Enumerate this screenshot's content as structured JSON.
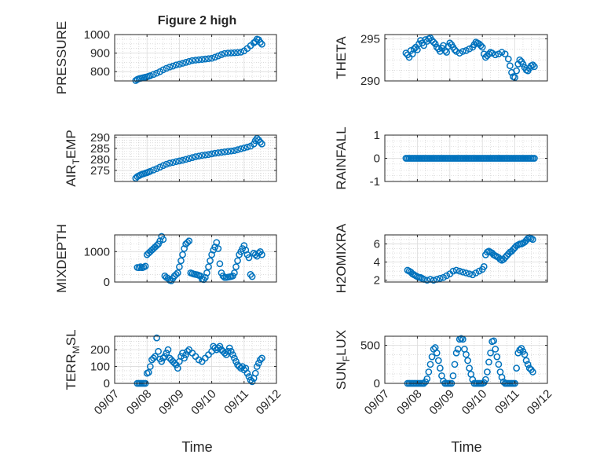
{
  "figure": {
    "title": "Figure 2 high",
    "xlabel": "Time"
  },
  "colors": {
    "marker": "#0072BD",
    "axis": "#262626",
    "grid": "#dcdcdc",
    "minor_grid": "#c8c8c8"
  },
  "chart_data": [
    {
      "type": "scatter",
      "ylabel": "PRESSURE",
      "ylim": [
        750,
        1000
      ],
      "yticks": [
        "800",
        "900",
        "1000"
      ],
      "ytick_values": [
        800,
        900,
        1000
      ],
      "xlim": [
        "09/07",
        "09/12"
      ],
      "xticklabels": [
        "09/07",
        "09/08",
        "09/09",
        "09/10",
        "09/11",
        "09/12"
      ],
      "show_xticklabels": false,
      "grid": true,
      "x": [
        7.65,
        7.7,
        7.75,
        7.8,
        7.85,
        7.9,
        7.95,
        8.0,
        8.05,
        8.1,
        8.2,
        8.3,
        8.4,
        8.5,
        8.6,
        8.7,
        8.8,
        8.9,
        9.0,
        9.1,
        9.2,
        9.3,
        9.4,
        9.5,
        9.6,
        9.7,
        9.8,
        9.9,
        10.0,
        10.1,
        10.2,
        10.3,
        10.4,
        10.5,
        10.6,
        10.7,
        10.8,
        10.9,
        11.0,
        11.1,
        11.2,
        11.3,
        11.35,
        11.4,
        11.45,
        11.5,
        11.55
      ],
      "y": [
        752,
        758,
        762,
        764,
        766,
        768,
        770,
        772,
        775,
        778,
        785,
        792,
        800,
        810,
        818,
        825,
        830,
        836,
        840,
        845,
        850,
        855,
        860,
        862,
        864,
        866,
        868,
        870,
        872,
        878,
        885,
        892,
        898,
        900,
        901,
        902,
        903,
        905,
        912,
        925,
        940,
        955,
        962,
        975,
        972,
        958,
        948
      ]
    },
    {
      "type": "scatter",
      "ylabel": "THETA",
      "ylim": [
        290,
        295.5
      ],
      "yticks": [
        "290",
        "295"
      ],
      "ytick_values": [
        290,
        295
      ],
      "xlim": [
        "09/07",
        "09/12"
      ],
      "show_xticklabels": false,
      "grid": true,
      "x": [
        7.65,
        7.7,
        7.75,
        7.8,
        7.85,
        7.9,
        7.95,
        8.0,
        8.05,
        8.1,
        8.15,
        8.2,
        8.25,
        8.3,
        8.35,
        8.4,
        8.45,
        8.5,
        8.55,
        8.6,
        8.65,
        8.7,
        8.75,
        8.8,
        8.85,
        8.9,
        8.95,
        9.0,
        9.05,
        9.1,
        9.15,
        9.2,
        9.3,
        9.4,
        9.5,
        9.6,
        9.7,
        9.75,
        9.8,
        9.85,
        9.9,
        9.95,
        10.0,
        10.05,
        10.1,
        10.15,
        10.2,
        10.25,
        10.3,
        10.4,
        10.5,
        10.6,
        10.7,
        10.8,
        10.85,
        10.9,
        10.95,
        11.0,
        11.05,
        11.1,
        11.15,
        11.2,
        11.25,
        11.3,
        11.35,
        11.4,
        11.45,
        11.5,
        11.55,
        11.6
      ],
      "y": [
        293.3,
        293.1,
        292.8,
        293.6,
        293.2,
        293.8,
        294.0,
        293.7,
        294.4,
        294.8,
        294.5,
        294.2,
        294.9,
        294.7,
        295.0,
        295.1,
        294.8,
        294.6,
        294.4,
        294.0,
        293.8,
        293.5,
        293.9,
        294.2,
        293.6,
        293.4,
        294.1,
        294.5,
        294.3,
        294.0,
        293.7,
        293.5,
        293.3,
        293.5,
        293.6,
        293.8,
        294.0,
        294.3,
        294.6,
        294.5,
        294.4,
        294.2,
        294.0,
        293.2,
        292.8,
        293.0,
        293.2,
        293.4,
        293.3,
        293.1,
        293.2,
        293.4,
        293.2,
        292.6,
        291.8,
        291.0,
        290.5,
        290.4,
        291.2,
        292.0,
        292.5,
        292.3,
        292.0,
        291.6,
        291.3,
        291.2,
        291.5,
        291.8,
        291.9,
        291.7
      ]
    },
    {
      "type": "scatter",
      "ylabel": "AIR_TEMP",
      "ylim": [
        270,
        291
      ],
      "yticks": [
        "275",
        "280",
        "285",
        "290"
      ],
      "ytick_values": [
        275,
        280,
        285,
        290
      ],
      "xlim": [
        "09/07",
        "09/12"
      ],
      "show_xticklabels": false,
      "grid": true,
      "x": [
        7.65,
        7.7,
        7.75,
        7.8,
        7.85,
        7.9,
        7.95,
        8.0,
        8.05,
        8.1,
        8.2,
        8.3,
        8.4,
        8.5,
        8.6,
        8.7,
        8.8,
        8.9,
        9.0,
        9.1,
        9.2,
        9.3,
        9.4,
        9.5,
        9.6,
        9.7,
        9.8,
        9.9,
        10.0,
        10.1,
        10.2,
        10.3,
        10.4,
        10.5,
        10.6,
        10.7,
        10.8,
        10.9,
        11.0,
        11.1,
        11.2,
        11.3,
        11.35,
        11.4,
        11.45,
        11.5,
        11.55
      ],
      "y": [
        271.5,
        272.2,
        272.6,
        273.0,
        273.3,
        273.5,
        273.8,
        274.0,
        274.3,
        274.6,
        275.2,
        275.8,
        276.5,
        277.2,
        277.8,
        278.3,
        278.6,
        279.0,
        279.3,
        279.6,
        280.0,
        280.4,
        280.8,
        281.2,
        281.5,
        281.8,
        282.0,
        282.2,
        282.5,
        282.8,
        283.0,
        283.2,
        283.4,
        283.6,
        283.8,
        284.0,
        284.4,
        284.8,
        285.2,
        285.6,
        286.0,
        287.0,
        288.5,
        289.5,
        288.8,
        287.8,
        287.0
      ]
    },
    {
      "type": "scatter",
      "ylabel": "RAINFALL",
      "ylim": [
        -1,
        1
      ],
      "yticks": [
        "-1",
        "0",
        "1"
      ],
      "ytick_values": [
        -1,
        0,
        1
      ],
      "xlim": [
        "09/07",
        "09/12"
      ],
      "show_xticklabels": false,
      "grid": true,
      "x": [
        7.65,
        7.7,
        7.75,
        7.8,
        7.85,
        7.9,
        7.95,
        8.0,
        8.05,
        8.1,
        8.15,
        8.2,
        8.25,
        8.3,
        8.35,
        8.4,
        8.45,
        8.5,
        8.55,
        8.6,
        8.65,
        8.7,
        8.75,
        8.8,
        8.85,
        8.9,
        8.95,
        9.0,
        9.05,
        9.1,
        9.15,
        9.2,
        9.25,
        9.3,
        9.35,
        9.4,
        9.45,
        9.5,
        9.55,
        9.6,
        9.65,
        9.7,
        9.75,
        9.8,
        9.85,
        9.9,
        9.95,
        10.0,
        10.05,
        10.1,
        10.15,
        10.2,
        10.25,
        10.3,
        10.35,
        10.4,
        10.45,
        10.5,
        10.55,
        10.6,
        10.65,
        10.7,
        10.75,
        10.8,
        10.85,
        10.9,
        10.95,
        11.0,
        11.05,
        11.1,
        11.15,
        11.2,
        11.25,
        11.3,
        11.35,
        11.4,
        11.45,
        11.5,
        11.55,
        11.6
      ],
      "y": [
        0,
        0,
        0,
        0,
        0,
        0,
        0,
        0,
        0,
        0,
        0,
        0,
        0,
        0,
        0,
        0,
        0,
        0,
        0,
        0,
        0,
        0,
        0,
        0,
        0,
        0,
        0,
        0,
        0,
        0,
        0,
        0,
        0,
        0,
        0,
        0,
        0,
        0,
        0,
        0,
        0,
        0,
        0,
        0,
        0,
        0,
        0,
        0,
        0,
        0,
        0,
        0,
        0,
        0,
        0,
        0,
        0,
        0,
        0,
        0,
        0,
        0,
        0,
        0,
        0,
        0,
        0,
        0,
        0,
        0,
        0,
        0,
        0,
        0,
        0,
        0,
        0,
        0,
        0,
        0
      ]
    },
    {
      "type": "scatter",
      "ylabel": "MIXDEPTH",
      "ylim": [
        0,
        1550
      ],
      "yticks": [
        "0",
        "1000"
      ],
      "ytick_values": [
        0,
        1000
      ],
      "xlim": [
        "09/07",
        "09/12"
      ],
      "show_xticklabels": false,
      "grid": true,
      "x": [
        7.7,
        7.75,
        7.8,
        7.85,
        7.9,
        7.95,
        8.0,
        8.05,
        8.1,
        8.15,
        8.2,
        8.25,
        8.3,
        8.35,
        8.4,
        8.45,
        8.5,
        8.55,
        8.6,
        8.65,
        8.7,
        8.75,
        8.8,
        8.85,
        8.9,
        8.95,
        9.0,
        9.05,
        9.1,
        9.15,
        9.2,
        9.25,
        9.3,
        9.35,
        9.4,
        9.45,
        9.5,
        9.55,
        9.6,
        9.65,
        9.7,
        9.75,
        9.8,
        9.85,
        9.9,
        9.95,
        10.0,
        10.05,
        10.1,
        10.15,
        10.2,
        10.25,
        10.3,
        10.35,
        10.4,
        10.45,
        10.5,
        10.55,
        10.6,
        10.65,
        10.7,
        10.75,
        10.8,
        10.85,
        10.9,
        10.95,
        11.0,
        11.05,
        11.1,
        11.15,
        11.2,
        11.25,
        11.3,
        11.35,
        11.4,
        11.45,
        11.5,
        11.55
      ],
      "y": [
        480,
        470,
        500,
        470,
        490,
        520,
        900,
        950,
        1000,
        1050,
        1100,
        1150,
        1200,
        1250,
        1350,
        1500,
        1400,
        200,
        150,
        120,
        60,
        40,
        120,
        200,
        250,
        300,
        500,
        700,
        900,
        1100,
        1250,
        1300,
        1350,
        300,
        280,
        260,
        250,
        240,
        220,
        200,
        100,
        80,
        150,
        300,
        500,
        700,
        900,
        1050,
        1150,
        1300,
        1100,
        600,
        300,
        200,
        150,
        150,
        160,
        170,
        180,
        200,
        300,
        500,
        700,
        900,
        1000,
        1100,
        1200,
        1050,
        900,
        800,
        250,
        180,
        950,
        900,
        850,
        950,
        1000,
        900
      ]
    },
    {
      "type": "scatter",
      "ylabel": "H2OMIXRA",
      "ylim": [
        1.8,
        7
      ],
      "yticks": [
        "2",
        "4",
        "6"
      ],
      "ytick_values": [
        2,
        4,
        6
      ],
      "xlim": [
        "09/07",
        "09/12"
      ],
      "show_xticklabels": false,
      "grid": true,
      "x": [
        7.7,
        7.75,
        7.8,
        7.85,
        7.9,
        7.95,
        8.0,
        8.05,
        8.1,
        8.15,
        8.2,
        8.3,
        8.4,
        8.5,
        8.6,
        8.7,
        8.8,
        8.9,
        9.0,
        9.1,
        9.2,
        9.3,
        9.4,
        9.5,
        9.6,
        9.7,
        9.8,
        9.9,
        10.0,
        10.05,
        10.1,
        10.15,
        10.2,
        10.25,
        10.3,
        10.35,
        10.4,
        10.45,
        10.5,
        10.55,
        10.6,
        10.65,
        10.7,
        10.75,
        10.8,
        10.85,
        10.9,
        10.95,
        11.0,
        11.05,
        11.1,
        11.15,
        11.2,
        11.25,
        11.3,
        11.35,
        11.4,
        11.45,
        11.5,
        11.55
      ],
      "y": [
        3.1,
        3.0,
        2.9,
        2.7,
        2.6,
        2.5,
        2.4,
        2.3,
        2.3,
        2.2,
        2.1,
        2.0,
        2.1,
        2.0,
        2.1,
        2.2,
        2.3,
        2.5,
        2.7,
        3.0,
        3.1,
        3.0,
        2.9,
        2.8,
        2.7,
        2.6,
        2.8,
        3.0,
        3.2,
        3.5,
        4.8,
        5.1,
        5.2,
        5.1,
        5.0,
        4.8,
        4.7,
        4.6,
        4.5,
        4.3,
        4.2,
        4.3,
        4.5,
        4.7,
        4.9,
        5.1,
        5.2,
        5.4,
        5.6,
        5.8,
        5.9,
        6.0,
        6.0,
        6.1,
        6.2,
        6.4,
        6.6,
        6.7,
        6.6,
        6.5
      ]
    },
    {
      "type": "scatter",
      "ylabel": "TERR_MSL",
      "ylim": [
        0,
        280
      ],
      "yticks": [
        "0",
        "100",
        "200"
      ],
      "ytick_values": [
        0,
        100,
        200
      ],
      "xlim": [
        "09/07",
        "09/12"
      ],
      "xticklabels": [
        "09/07",
        "09/08",
        "09/09",
        "09/10",
        "09/11",
        "09/12"
      ],
      "show_xticklabels": true,
      "grid": true,
      "x": [
        7.7,
        7.75,
        7.8,
        7.85,
        7.9,
        7.95,
        8.0,
        8.05,
        8.1,
        8.15,
        8.2,
        8.25,
        8.3,
        8.35,
        8.4,
        8.45,
        8.5,
        8.55,
        8.6,
        8.65,
        8.7,
        8.75,
        8.8,
        8.85,
        8.9,
        8.95,
        9.0,
        9.05,
        9.1,
        9.15,
        9.2,
        9.25,
        9.3,
        9.4,
        9.5,
        9.6,
        9.7,
        9.8,
        9.9,
        10.0,
        10.05,
        10.1,
        10.15,
        10.2,
        10.25,
        10.3,
        10.35,
        10.4,
        10.45,
        10.5,
        10.55,
        10.6,
        10.65,
        10.7,
        10.75,
        10.8,
        10.85,
        10.9,
        10.95,
        11.0,
        11.05,
        11.1,
        11.15,
        11.2,
        11.25,
        11.3,
        11.35,
        11.4,
        11.45,
        11.5,
        11.55
      ],
      "y": [
        0,
        0,
        0,
        0,
        0,
        0,
        60,
        65,
        100,
        140,
        150,
        160,
        270,
        190,
        145,
        130,
        150,
        160,
        180,
        200,
        150,
        140,
        130,
        120,
        110,
        90,
        130,
        160,
        180,
        150,
        170,
        190,
        200,
        180,
        160,
        140,
        130,
        150,
        170,
        190,
        220,
        210,
        200,
        210,
        220,
        200,
        190,
        180,
        170,
        190,
        210,
        190,
        170,
        150,
        130,
        110,
        100,
        90,
        100,
        80,
        90,
        60,
        40,
        20,
        10,
        30,
        60,
        100,
        120,
        140,
        150
      ]
    },
    {
      "type": "scatter",
      "ylabel": "SUN_FLUX",
      "ylim": [
        0,
        620
      ],
      "yticks": [
        "0",
        "500"
      ],
      "ytick_values": [
        0,
        500
      ],
      "xlim": [
        "09/07",
        "09/12"
      ],
      "xticklabels": [
        "09/07",
        "09/08",
        "09/09",
        "09/10",
        "09/11",
        "09/12"
      ],
      "show_xticklabels": true,
      "grid": true,
      "x": [
        7.7,
        7.75,
        7.8,
        7.85,
        7.9,
        7.95,
        8.0,
        8.05,
        8.1,
        8.15,
        8.2,
        8.25,
        8.3,
        8.35,
        8.4,
        8.45,
        8.5,
        8.55,
        8.6,
        8.65,
        8.7,
        8.75,
        8.8,
        8.85,
        8.9,
        8.95,
        9.0,
        9.05,
        9.1,
        9.15,
        9.2,
        9.25,
        9.3,
        9.35,
        9.4,
        9.45,
        9.5,
        9.55,
        9.6,
        9.65,
        9.7,
        9.75,
        9.8,
        9.85,
        9.9,
        9.95,
        10.0,
        10.05,
        10.1,
        10.15,
        10.2,
        10.25,
        10.3,
        10.35,
        10.4,
        10.45,
        10.5,
        10.55,
        10.6,
        10.65,
        10.7,
        10.75,
        10.8,
        10.85,
        10.9,
        10.95,
        11.0,
        11.05,
        11.1,
        11.15,
        11.2,
        11.25,
        11.3,
        11.35,
        11.4,
        11.45,
        11.5,
        11.55
      ],
      "y": [
        0,
        0,
        0,
        0,
        0,
        0,
        0,
        0,
        0,
        0,
        0,
        20,
        60,
        150,
        250,
        350,
        450,
        470,
        400,
        300,
        200,
        100,
        30,
        0,
        0,
        0,
        0,
        0,
        100,
        250,
        400,
        450,
        580,
        590,
        580,
        450,
        380,
        300,
        200,
        120,
        50,
        0,
        0,
        0,
        0,
        0,
        0,
        10,
        50,
        150,
        280,
        400,
        550,
        560,
        450,
        350,
        250,
        150,
        80,
        20,
        0,
        0,
        0,
        0,
        0,
        0,
        0,
        200,
        400,
        440,
        460,
        420,
        380,
        300,
        250,
        200,
        180,
        150
      ]
    }
  ]
}
